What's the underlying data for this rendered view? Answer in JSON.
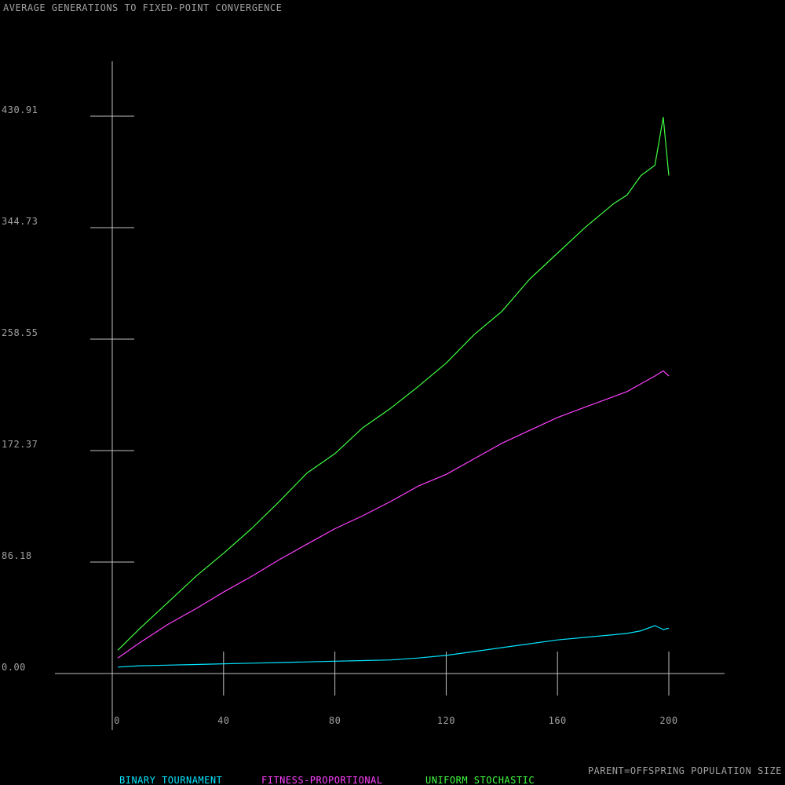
{
  "chart_data": {
    "type": "line",
    "title": "AVERAGE GENERATIONS TO FIXED-POINT CONVERGENCE",
    "xlabel": "PARENT=OFFSPRING POPULATION SIZE",
    "ylabel": "",
    "xlim": [
      0,
      200
    ],
    "ylim": [
      0,
      430.91
    ],
    "x_ticks": [
      0,
      40,
      80,
      120,
      160,
      200
    ],
    "x_tick_labels": [
      "0",
      "40",
      "80",
      "120",
      "160",
      "200"
    ],
    "y_ticks": [
      0,
      86.18,
      172.37,
      258.55,
      344.73,
      430.91
    ],
    "y_tick_labels": [
      "0.00",
      "86.18",
      "172.37",
      "258.55",
      "344.73",
      "430.91"
    ],
    "legend_placement": "bottom",
    "x": [
      2,
      10,
      20,
      30,
      40,
      50,
      60,
      70,
      80,
      90,
      100,
      110,
      120,
      130,
      140,
      150,
      160,
      170,
      180,
      185,
      190,
      195,
      198,
      200
    ],
    "series": [
      {
        "name": "BINARY TOURNAMENT",
        "color": "#00e5ff",
        "values": [
          5,
          6,
          6.5,
          7,
          7.5,
          8,
          8.5,
          9,
          9.5,
          10,
          10.5,
          12,
          14,
          17,
          20,
          23,
          26,
          28,
          30,
          31,
          33,
          37,
          34,
          35
        ]
      },
      {
        "name": "FITNESS-PROPORTIONAL",
        "color": "#ff40ff",
        "values": [
          12,
          24,
          38,
          50,
          63,
          75,
          88,
          100,
          112,
          122,
          133,
          145,
          154,
          166,
          178,
          188,
          198,
          206,
          214,
          218,
          224,
          230,
          234,
          230
        ]
      },
      {
        "name": "UNIFORM STOCHASTIC",
        "color": "#40ff40",
        "values": [
          18,
          35,
          55,
          75,
          93,
          112,
          133,
          155,
          170,
          190,
          205,
          222,
          240,
          262,
          280,
          305,
          325,
          345,
          363,
          370,
          385,
          393,
          430,
          385
        ]
      }
    ]
  }
}
